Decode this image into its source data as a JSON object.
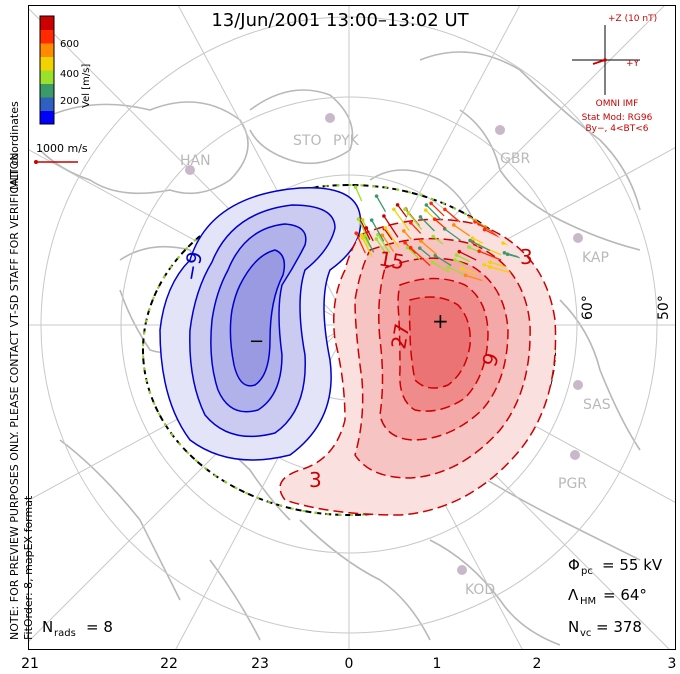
{
  "title": "13/Jun/2001 13:00–13:02 UT",
  "side_notes": {
    "coords": "MLT coordinates",
    "preview": "NOTE: FOR PREVIEW PURPOSES ONLY. PLEASE CONTACT VT-SD STAFF FOR VERIFICATION.",
    "fit": "FitOrder: 8, mapEX format"
  },
  "colorbar": {
    "label": "Vel [m/s]",
    "ticks": [
      "600",
      "400",
      "200"
    ],
    "colors": [
      "#0000ff",
      "#2f5fbf",
      "#3a9a6a",
      "#9be02a",
      "#f2d200",
      "#ff8c00",
      "#ff2a00",
      "#cc0000"
    ]
  },
  "vector_scale": {
    "label": "1000 m/s",
    "color": "#cc0000"
  },
  "imf": {
    "z_label": "+Z (10 nT)",
    "y_label": "+Y",
    "source": "OMNI IMF",
    "model": "Stat Mod: RG96",
    "condition": "By−, 4<BT<6"
  },
  "stations": [
    {
      "id": "st-han",
      "name": "HAN"
    },
    {
      "id": "st-sto",
      "name": "STO"
    },
    {
      "id": "st-pyk",
      "name": "PYK"
    },
    {
      "id": "st-gbr",
      "name": "GBR"
    },
    {
      "id": "st-kap",
      "name": "KAP"
    },
    {
      "id": "st-sas",
      "name": "SAS"
    },
    {
      "id": "st-pgr",
      "name": "PGR"
    },
    {
      "id": "st-kod",
      "name": "KOD"
    }
  ],
  "latitude_labels": [
    "60°",
    "50°"
  ],
  "contour_labels": {
    "neg": "−9",
    "neg_center": "−",
    "pos_27": "27",
    "pos_15": "15",
    "pos_9": "9",
    "pos_3a": "3",
    "pos_3b": "3",
    "pos_center": "+"
  },
  "stats": {
    "phi_sym": "Φ",
    "phi_sub": "pc",
    "phi_val": "= 55 kV",
    "lambda_sym": "Λ",
    "lambda_sub": "HM",
    "lambda_val": "= 64°",
    "nvc_sym": "N",
    "nvc_sub": "vc",
    "nvc_val": "= 378",
    "nrads_sym": "N",
    "nrads_sub": "rads",
    "nrads_val": "= 8"
  },
  "mlt_axis": [
    "21",
    "22",
    "23",
    "0",
    "1",
    "2",
    "3"
  ]
}
